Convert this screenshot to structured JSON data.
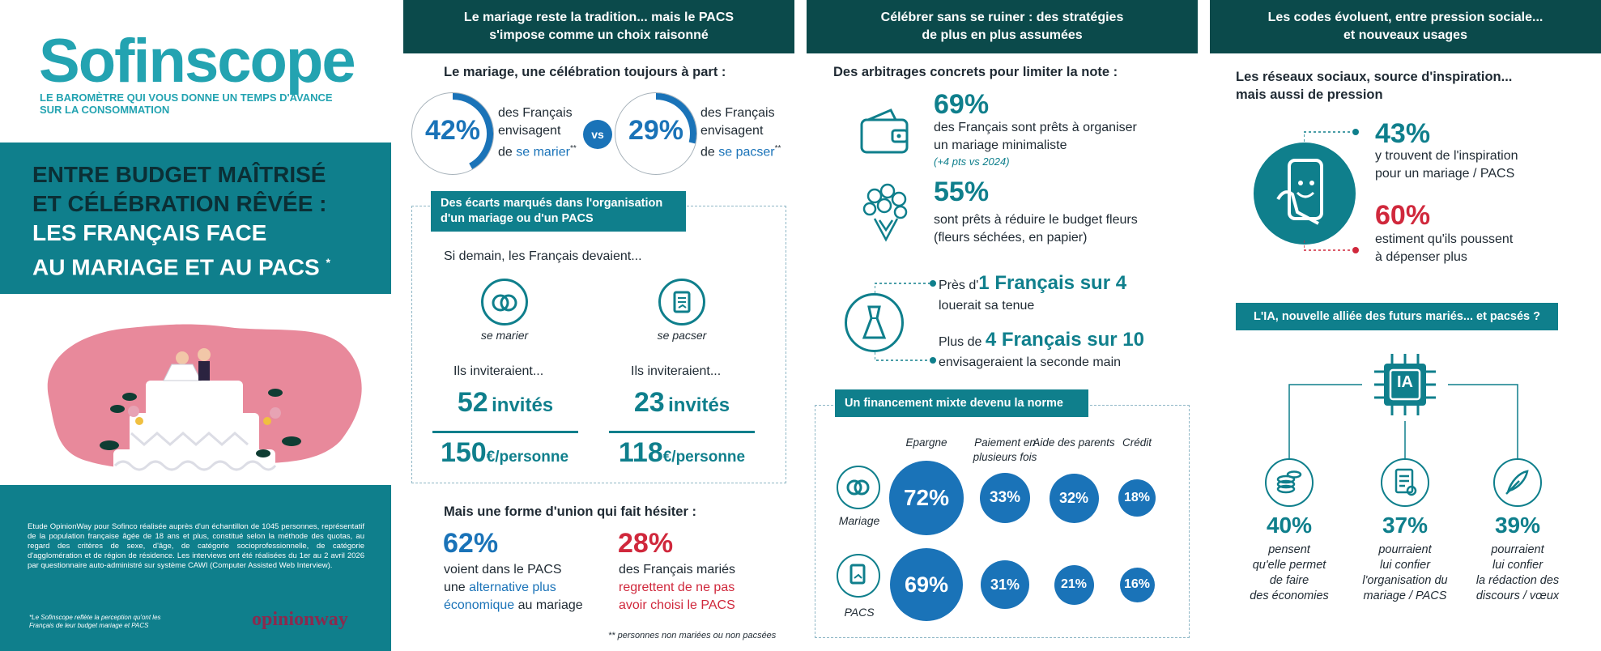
{
  "left": {
    "logo": "Sofinscope",
    "tagline_1": "LE BAROMÈTRE QUI VOUS DONNE UN TEMPS D'AVANCE",
    "tagline_2": "SUR LA CONSOMMATION",
    "title_line_1": "ENTRE BUDGET MAÎTRISÉ",
    "title_line_2": "ET CÉLÉBRATION RÊVÉE :",
    "title_line_3": "LES FRANÇAIS FACE",
    "title_line_4": "AU MARIAGE ET AU PACS",
    "title_star": "*",
    "methodology": "Etude OpinionWay pour Sofinco réalisée auprès d'un échantillon de 1045 personnes, représentatif de la population française âgée de 18 ans et plus, constitué selon la méthode des quotas, au regard des critères de sexe, d'âge, de catégorie socioprofessionnelle, de catégorie d'agglomération et de région de résidence. Les interviews ont été réalisées du 1er au 2 avril 2026 par questionnaire auto-administré sur système CAWI (Computer Assisted Web Interview).",
    "footnote": "*Le Sofinscope reflète la perception qu'ont les Français de leur budget mariage et PACS",
    "brand": "opinionway"
  },
  "col1": {
    "header_1": "Le mariage reste la tradition... mais le PACS",
    "header_2": "s'impose comme un choix raisonné",
    "subtitle": "Le mariage, une célébration toujours à part :",
    "stat1": {
      "value": "42%",
      "l1": "des Français",
      "l2": "envisagent",
      "l3a": "de ",
      "l3b": "se marier",
      "l3c": "**",
      "ring_fraction": 0.42
    },
    "vs": "vs",
    "stat2": {
      "value": "29%",
      "l1": "des Français",
      "l2": "envisagent",
      "l3a": "de ",
      "l3b": "se pacser",
      "l3c": "**",
      "ring_fraction": 0.29
    },
    "tag_1": "Des écarts marqués dans l'organisation",
    "tag_2": "d'un mariage ou d'un PACS",
    "intro": "Si demain, les Français devaient...",
    "marier_label": "se marier",
    "pacser_label": "se pacser",
    "invite_label_1": "Ils inviteraient...",
    "invite_label_2": "Ils inviteraient...",
    "marier_guests": "52",
    "pacser_guests": "23",
    "guests_unit": "invités",
    "marier_cost": "150",
    "pacser_cost": "118",
    "cost_unit": "€/personne",
    "hesitation": "Mais une forme d'union qui fait hésiter :",
    "stat3": {
      "value": "62%",
      "l1": "voient dans le PACS",
      "l2a": "une ",
      "l2b": "alternative plus",
      "l3a": "économique",
      "l3b": " au mariage"
    },
    "stat4": {
      "value": "28%",
      "l1": "des Français mariés",
      "l2": "regrettent de ne pas",
      "l3": "avoir choisi le PACS"
    },
    "footnote": "** personnes non mariées ou non pacsées"
  },
  "col2": {
    "header_1": "Célébrer sans se ruiner : des stratégies",
    "header_2": "de plus en plus assumées",
    "subtitle": "Des arbitrages concrets pour limiter la note :",
    "s1": {
      "value": "69%",
      "l1": "des Français sont prêts à organiser",
      "l2": "un mariage minimaliste",
      "l3": "(+4 pts vs 2024)"
    },
    "s2": {
      "value": "55%",
      "l1": "sont prêts à réduire le budget fleurs",
      "l2": "(fleurs séchées, en papier)"
    },
    "s3": {
      "pre": "Près d'",
      "big": "1 Français sur 4",
      "l2": "louerait sa tenue"
    },
    "s4": {
      "pre": "Plus de ",
      "big": "4 Français sur 10",
      "l2": "envisageraient la seconde main"
    },
    "fin_tag": "Un financement mixte devenu la norme",
    "fin_headers": [
      "Epargne",
      "Paiement en plusieurs fois",
      "Aide des parents",
      "Crédit"
    ],
    "fin_rows": [
      {
        "label": "Mariage",
        "values": [
          "72%",
          "33%",
          "32%",
          "18%"
        ]
      },
      {
        "label": "PACS",
        "values": [
          "69%",
          "31%",
          "21%",
          "16%"
        ]
      }
    ]
  },
  "col3": {
    "header_1": "Les codes évoluent, entre pression sociale...",
    "header_2": "et nouveaux usages",
    "subtitle_1": "Les réseaux sociaux, source d'inspiration...",
    "subtitle_2": "mais aussi de pression",
    "s1": {
      "value": "43%",
      "l1": "y trouvent de l'inspiration",
      "l2": "pour un mariage / PACS"
    },
    "s2": {
      "value": "60%",
      "l1": "estiment qu'ils poussent",
      "l2": "à dépenser plus"
    },
    "ai_tag": "L'IA, nouvelle alliée des futurs mariés... et pacsés ?",
    "ai_chip": "IA",
    "ai_stats": [
      {
        "value": "40%",
        "l1": "pensent",
        "l2": "qu'elle permet",
        "l3": "de faire",
        "l4": "des économies"
      },
      {
        "value": "37%",
        "l1": "pourraient",
        "l2": "lui confier",
        "l3": "l'organisation du",
        "l4": "mariage / PACS"
      },
      {
        "value": "39%",
        "l1": "pourraient",
        "l2": "lui confier",
        "l3": "la rédaction des",
        "l4": "discours / vœux"
      }
    ]
  },
  "colors": {
    "teal": "#0f7f8c",
    "dark_teal": "#0b4a4b",
    "blue": "#1a73b8",
    "red": "#d0283c",
    "pink": "#e8899b"
  }
}
